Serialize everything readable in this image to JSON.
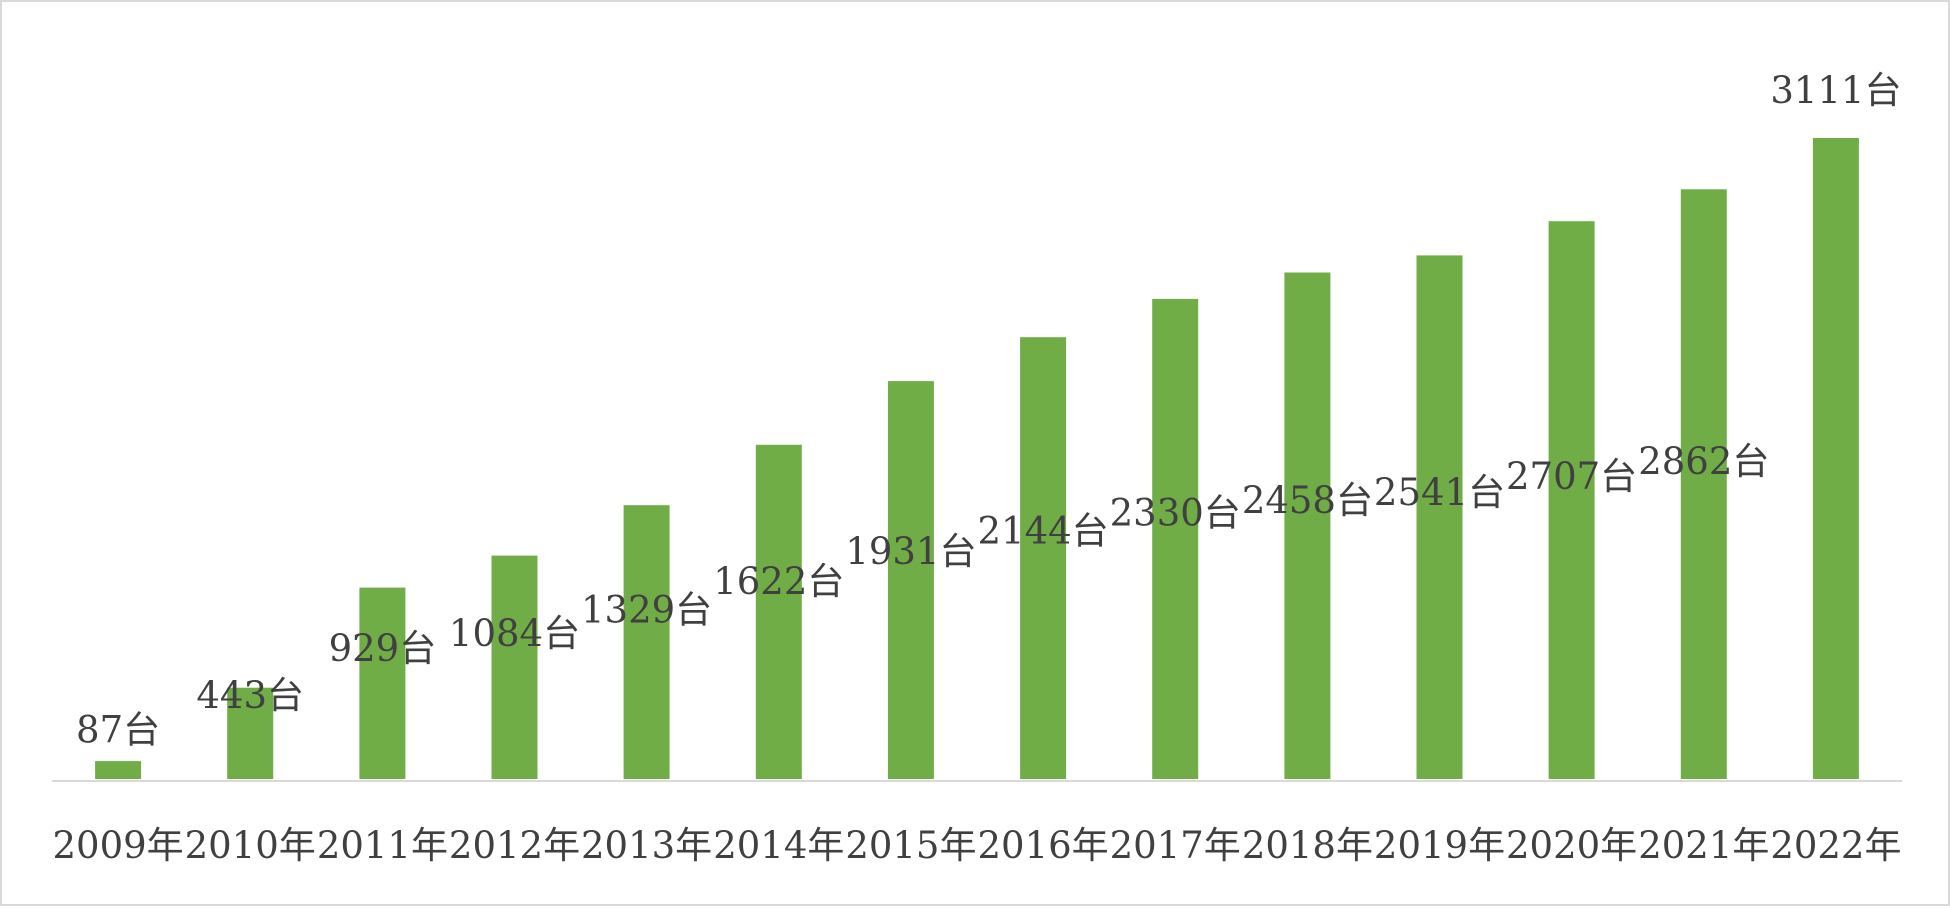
{
  "chart_data": {
    "type": "bar",
    "categories": [
      "2009年",
      "2010年",
      "2011年",
      "2012年",
      "2013年",
      "2014年",
      "2015年",
      "2016年",
      "2017年",
      "2018年",
      "2019年",
      "2020年",
      "2021年",
      "2022年"
    ],
    "values": [
      87,
      443,
      929,
      1084,
      1329,
      1622,
      1931,
      2144,
      2330,
      2458,
      2541,
      2707,
      2862,
      3111
    ],
    "data_labels": [
      "87台",
      "443台",
      "929台",
      "1084台",
      "1329台",
      "1622台",
      "1931台",
      "2144台",
      "2330台",
      "2458台",
      "2541台",
      "2707台",
      "2862台",
      "3111台"
    ],
    "title": "",
    "xlabel": "",
    "ylabel": "",
    "ylim": [
      0,
      3111
    ],
    "grid": false,
    "legend": "none",
    "colors": {
      "bar": "#70ad47",
      "axis": "#d9d9d9",
      "text": "#404040"
    }
  }
}
